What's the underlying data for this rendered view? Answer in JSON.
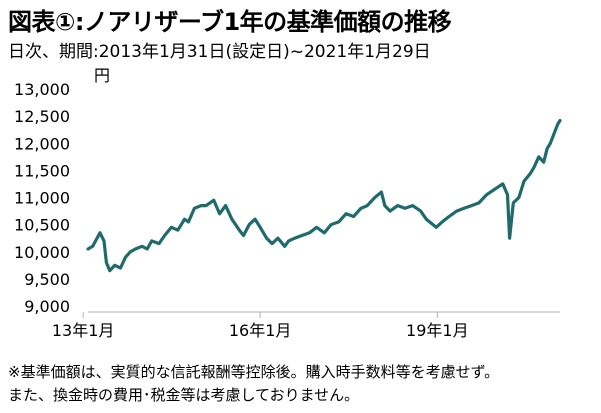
{
  "title": "図表①:ノアリザーブ1年の基準価額の推移",
  "subtitle": "日次、期間:2013年1月31日(設定日)~2021年1月29日",
  "unit": "円",
  "notes": [
    "※基準価額は、実質的な信託報酬等控除後。購入時手数料等を考慮せず。",
    "また、換金時の費用･税金等は考慮しておりません。"
  ],
  "chart_data": {
    "type": "line",
    "title": "図表①:ノアリザーブ1年の基準価額の推移",
    "ylabel": "円",
    "ylim": [
      9000,
      13000
    ],
    "yticks": [
      9000,
      9500,
      10000,
      10500,
      11000,
      11500,
      12000,
      12500,
      13000
    ],
    "ytick_labels": [
      "9,000",
      "9,500",
      "10,000",
      "10,500",
      "11,000",
      "11,500",
      "12,000",
      "12,500",
      "13,000"
    ],
    "xlim": [
      "2013-01-31",
      "2021-01-29"
    ],
    "xticks": [
      "2013-01",
      "2016-01",
      "2019-01"
    ],
    "xtick_labels": [
      "13年1月",
      "16年1月",
      "19年1月"
    ],
    "grid": false,
    "color": "#1f6b6b",
    "series": [
      {
        "x": [
          "2013-01-31",
          "2013-03-01",
          "2013-04-15",
          "2013-05-10",
          "2013-05-25",
          "2013-06-15",
          "2013-07-15",
          "2013-08-20",
          "2013-09-20",
          "2013-10-20",
          "2013-11-20",
          "2013-12-31",
          "2014-02-01",
          "2014-03-01",
          "2014-04-15",
          "2014-05-20",
          "2014-07-01",
          "2014-08-10",
          "2014-09-20",
          "2014-10-15",
          "2014-11-20",
          "2014-12-31",
          "2015-02-01",
          "2015-03-20",
          "2015-04-25",
          "2015-06-01",
          "2015-07-10",
          "2015-08-25",
          "2015-09-20",
          "2015-10-25",
          "2015-12-01",
          "2016-01-01",
          "2016-02-10",
          "2016-03-15",
          "2016-04-20",
          "2016-06-01",
          "2016-06-25",
          "2016-08-01",
          "2016-09-15",
          "2016-11-01",
          "2016-12-15",
          "2017-02-01",
          "2017-03-15",
          "2017-05-01",
          "2017-06-15",
          "2017-08-01",
          "2017-09-15",
          "2017-10-25",
          "2017-12-10",
          "2018-01-20",
          "2018-02-10",
          "2018-03-15",
          "2018-05-01",
          "2018-06-15",
          "2018-08-01",
          "2018-09-20",
          "2018-10-25",
          "2018-12-25",
          "2019-01-31",
          "2019-03-15",
          "2019-05-01",
          "2019-06-15",
          "2019-08-01",
          "2019-09-15",
          "2019-11-01",
          "2019-12-20",
          "2020-02-10",
          "2020-03-10",
          "2020-03-23",
          "2020-04-15",
          "2020-05-20",
          "2020-06-20",
          "2020-07-31",
          "2020-08-20",
          "2020-09-20",
          "2020-10-20",
          "2020-11-10",
          "2020-11-30",
          "2020-12-20",
          "2021-01-15",
          "2021-01-29"
        ],
        "values": [
          10050,
          10100,
          10350,
          10200,
          9800,
          9650,
          9750,
          9700,
          9900,
          10000,
          10050,
          10100,
          10050,
          10200,
          10150,
          10300,
          10450,
          10400,
          10600,
          10550,
          10800,
          10850,
          10850,
          10950,
          10700,
          10850,
          10600,
          10400,
          10300,
          10500,
          10600,
          10450,
          10250,
          10150,
          10250,
          10100,
          10200,
          10250,
          10300,
          10350,
          10450,
          10350,
          10500,
          10550,
          10700,
          10650,
          10800,
          10850,
          11000,
          11100,
          10850,
          10750,
          10850,
          10800,
          10850,
          10750,
          10600,
          10450,
          10550,
          10650,
          10750,
          10800,
          10850,
          10900,
          11050,
          11150,
          11250,
          11050,
          10250,
          10900,
          11000,
          11300,
          11450,
          11550,
          11750,
          11650,
          11900,
          12000,
          12150,
          12350,
          12420
        ]
      }
    ]
  }
}
